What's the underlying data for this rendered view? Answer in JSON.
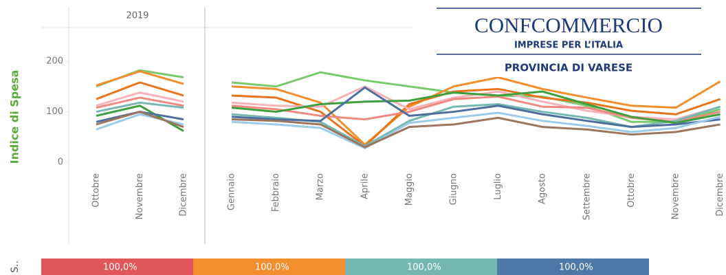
{
  "chart_data": [
    {
      "type": "line",
      "title": "2019",
      "y_label": "Indice di Spesa",
      "ylim": [
        -12,
        310
      ],
      "yticks": [
        0,
        100,
        200
      ],
      "categories": [
        "Ottobre",
        "Novembre",
        "Dicembre"
      ],
      "series": [
        {
          "color": "#7bc96f",
          "values": [
            150,
            182,
            168
          ]
        },
        {
          "color": "#f28e2b",
          "values": [
            152,
            180,
            155
          ]
        },
        {
          "color": "#e8741c",
          "values": [
            125,
            158,
            132
          ]
        },
        {
          "color": "#f6b3b8",
          "values": [
            112,
            138,
            120
          ]
        },
        {
          "color": "#f08a80",
          "values": [
            108,
            128,
            112
          ]
        },
        {
          "color": "#76b7b2",
          "values": [
            100,
            118,
            108
          ]
        },
        {
          "color": "#3f9f3f",
          "values": [
            92,
            112,
            62
          ]
        },
        {
          "color": "#4e6f9e",
          "values": [
            80,
            100,
            85
          ]
        },
        {
          "color": "#9ccbea",
          "values": [
            65,
            95,
            75
          ]
        },
        {
          "color": "#9c755f",
          "values": [
            75,
            100,
            70
          ]
        }
      ]
    },
    {
      "type": "line",
      "categories": [
        "Gennaio",
        "Febbraio",
        "Marzo",
        "Aprile",
        "Maggio",
        "Giugno",
        "Luglio",
        "Agosto",
        "Settembre",
        "Ottobre",
        "Novembre",
        "Dicembre"
      ],
      "series": [
        {
          "color": "#7bc96f",
          "values": [
            158,
            150,
            178,
            162,
            150,
            138,
            132,
            130,
            112,
            80,
            80,
            105
          ]
        },
        {
          "color": "#f28e2b",
          "values": [
            150,
            145,
            118,
            35,
            110,
            150,
            168,
            145,
            128,
            112,
            108,
            160
          ]
        },
        {
          "color": "#e8741c",
          "values": [
            132,
            128,
            100,
            32,
            115,
            140,
            145,
            128,
            118,
            102,
            95,
            125
          ]
        },
        {
          "color": "#f6b3b8",
          "values": [
            118,
            112,
            110,
            150,
            105,
            128,
            140,
            120,
            102,
            90,
            85,
            110
          ]
        },
        {
          "color": "#f08a80",
          "values": [
            112,
            105,
            92,
            85,
            100,
            125,
            130,
            110,
            108,
            88,
            80,
            100
          ]
        },
        {
          "color": "#76b7b2",
          "values": [
            95,
            88,
            80,
            32,
            82,
            110,
            115,
            100,
            88,
            70,
            82,
            110
          ]
        },
        {
          "color": "#3f9f3f",
          "values": [
            108,
            100,
            115,
            120,
            122,
            138,
            132,
            140,
            115,
            90,
            78,
            95
          ]
        },
        {
          "color": "#4e6f9e",
          "values": [
            90,
            85,
            82,
            148,
            92,
            100,
            112,
            95,
            82,
            70,
            75,
            85
          ]
        },
        {
          "color": "#9ccbea",
          "values": [
            80,
            75,
            68,
            28,
            78,
            88,
            98,
            82,
            72,
            60,
            68,
            90
          ]
        },
        {
          "color": "#9c755f",
          "values": [
            85,
            82,
            75,
            30,
            70,
            75,
            88,
            70,
            65,
            55,
            60,
            75
          ]
        }
      ]
    }
  ],
  "bottom_bar": {
    "label": "S..",
    "segments": [
      {
        "label": "100,0%",
        "color": "#e15759"
      },
      {
        "label": "100,0%",
        "color": "#f28e2b"
      },
      {
        "label": "100,0%",
        "color": "#76b7b2"
      },
      {
        "label": "100,0%",
        "color": "#4e79a7"
      }
    ]
  },
  "logo": {
    "name": "CONFCOMMERCIO",
    "tagline": "IMPRESE PER L’ITALIA",
    "branch": "PROVINCIA DI VARESE"
  }
}
